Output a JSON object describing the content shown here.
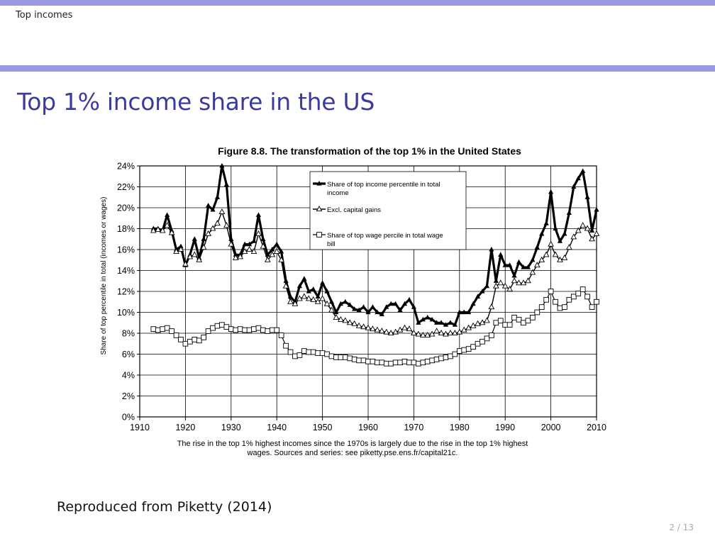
{
  "header": {
    "section": "Top incomes"
  },
  "slide": {
    "title": "Top 1% income share in the US",
    "caption": "Reproduced from Piketty (2014)",
    "page": "2 / 13"
  },
  "colors": {
    "bar": "#9999dd",
    "title": "#3b3b9e"
  },
  "chart_data": {
    "type": "line",
    "title": "Figure 8.8. The transformation of the top 1% in the United States",
    "ylabel": "Share of top percentile in total (incomes or wages)",
    "note_lines": [
      "The rise in the top 1% highest incomes since the 1970s is largely due to the rise in the top 1% highest",
      "wages. Sources and series: see piketty.pse.ens.fr/capital21c."
    ],
    "xlim": [
      1910,
      2010
    ],
    "ylim": [
      0,
      24
    ],
    "x_ticks": [
      1910,
      1920,
      1930,
      1940,
      1950,
      1960,
      1970,
      1980,
      1990,
      2000,
      2010
    ],
    "y_ticks": [
      "0%",
      "2%",
      "4%",
      "6%",
      "8%",
      "10%",
      "12%",
      "14%",
      "16%",
      "18%",
      "20%",
      "22%",
      "24%"
    ],
    "grid": true,
    "legend_position": "top-center",
    "series": [
      {
        "name": "Share of top income percentile in total income",
        "marker": "filled-triangle",
        "points": [
          [
            1913,
            18.0
          ],
          [
            1914,
            18.0
          ],
          [
            1915,
            17.8
          ],
          [
            1916,
            19.3
          ],
          [
            1917,
            17.8
          ],
          [
            1918,
            16.0
          ],
          [
            1919,
            16.3
          ],
          [
            1920,
            14.5
          ],
          [
            1921,
            15.5
          ],
          [
            1922,
            17.0
          ],
          [
            1923,
            15.2
          ],
          [
            1924,
            17.0
          ],
          [
            1925,
            20.2
          ],
          [
            1926,
            19.8
          ],
          [
            1927,
            21.0
          ],
          [
            1928,
            24.0
          ],
          [
            1929,
            22.2
          ],
          [
            1930,
            17.0
          ],
          [
            1931,
            15.5
          ],
          [
            1932,
            15.5
          ],
          [
            1933,
            16.5
          ],
          [
            1934,
            16.5
          ],
          [
            1935,
            16.8
          ],
          [
            1936,
            19.3
          ],
          [
            1937,
            17.0
          ],
          [
            1938,
            15.5
          ],
          [
            1939,
            16.0
          ],
          [
            1940,
            16.5
          ],
          [
            1941,
            15.8
          ],
          [
            1942,
            13.0
          ],
          [
            1943,
            11.5
          ],
          [
            1944,
            11.0
          ],
          [
            1945,
            12.5
          ],
          [
            1946,
            13.2
          ],
          [
            1947,
            12.0
          ],
          [
            1948,
            12.2
          ],
          [
            1949,
            11.5
          ],
          [
            1950,
            12.8
          ],
          [
            1951,
            12.0
          ],
          [
            1952,
            11.0
          ],
          [
            1953,
            10.0
          ],
          [
            1954,
            10.8
          ],
          [
            1955,
            11.0
          ],
          [
            1956,
            10.7
          ],
          [
            1957,
            10.3
          ],
          [
            1958,
            10.2
          ],
          [
            1959,
            10.5
          ],
          [
            1960,
            10.0
          ],
          [
            1961,
            10.5
          ],
          [
            1962,
            10.0
          ],
          [
            1963,
            9.8
          ],
          [
            1964,
            10.5
          ],
          [
            1965,
            10.8
          ],
          [
            1966,
            10.8
          ],
          [
            1967,
            10.2
          ],
          [
            1968,
            10.8
          ],
          [
            1969,
            11.2
          ],
          [
            1970,
            10.5
          ],
          [
            1971,
            9.0
          ],
          [
            1972,
            9.3
          ],
          [
            1973,
            9.5
          ],
          [
            1974,
            9.3
          ],
          [
            1975,
            9.0
          ],
          [
            1976,
            9.0
          ],
          [
            1977,
            8.8
          ],
          [
            1978,
            9.0
          ],
          [
            1979,
            8.8
          ],
          [
            1980,
            10.0
          ],
          [
            1981,
            10.0
          ],
          [
            1982,
            10.0
          ],
          [
            1983,
            10.8
          ],
          [
            1984,
            11.5
          ],
          [
            1985,
            12.0
          ],
          [
            1986,
            12.5
          ],
          [
            1987,
            16.0
          ],
          [
            1988,
            13.0
          ],
          [
            1989,
            15.5
          ],
          [
            1990,
            14.5
          ],
          [
            1991,
            14.5
          ],
          [
            1992,
            13.5
          ],
          [
            1993,
            14.8
          ],
          [
            1994,
            14.3
          ],
          [
            1995,
            14.3
          ],
          [
            1996,
            15.0
          ],
          [
            1997,
            16.2
          ],
          [
            1998,
            17.5
          ],
          [
            1999,
            18.5
          ],
          [
            2000,
            21.5
          ],
          [
            2001,
            18.0
          ],
          [
            2002,
            16.8
          ],
          [
            2003,
            17.5
          ],
          [
            2004,
            19.5
          ],
          [
            2005,
            22.0
          ],
          [
            2006,
            22.8
          ],
          [
            2007,
            23.5
          ],
          [
            2008,
            21.0
          ],
          [
            2009,
            17.8
          ],
          [
            2010,
            19.8
          ]
        ]
      },
      {
        "name": "Excl. capital gains",
        "marker": "open-triangle",
        "points": [
          [
            1913,
            17.8
          ],
          [
            1914,
            17.9
          ],
          [
            1915,
            17.8
          ],
          [
            1916,
            18.3
          ],
          [
            1917,
            17.6
          ],
          [
            1918,
            15.8
          ],
          [
            1919,
            16.0
          ],
          [
            1920,
            14.6
          ],
          [
            1921,
            15.3
          ],
          [
            1922,
            15.5
          ],
          [
            1923,
            15.0
          ],
          [
            1924,
            16.2
          ],
          [
            1925,
            17.5
          ],
          [
            1926,
            18.0
          ],
          [
            1927,
            18.5
          ],
          [
            1928,
            19.6
          ],
          [
            1929,
            18.3
          ],
          [
            1930,
            16.5
          ],
          [
            1931,
            15.2
          ],
          [
            1932,
            15.3
          ],
          [
            1933,
            15.8
          ],
          [
            1934,
            16.0
          ],
          [
            1935,
            15.8
          ],
          [
            1936,
            17.5
          ],
          [
            1937,
            16.3
          ],
          [
            1938,
            15.0
          ],
          [
            1939,
            15.5
          ],
          [
            1940,
            15.8
          ],
          [
            1941,
            15.0
          ],
          [
            1942,
            12.5
          ],
          [
            1943,
            11.0
          ],
          [
            1944,
            10.8
          ],
          [
            1945,
            11.3
          ],
          [
            1946,
            11.5
          ],
          [
            1947,
            11.3
          ],
          [
            1948,
            11.2
          ],
          [
            1949,
            11.0
          ],
          [
            1950,
            11.3
          ],
          [
            1951,
            10.8
          ],
          [
            1952,
            10.2
          ],
          [
            1953,
            9.5
          ],
          [
            1954,
            9.3
          ],
          [
            1955,
            9.2
          ],
          [
            1956,
            9.0
          ],
          [
            1957,
            8.9
          ],
          [
            1958,
            8.7
          ],
          [
            1959,
            8.6
          ],
          [
            1960,
            8.5
          ],
          [
            1961,
            8.4
          ],
          [
            1962,
            8.3
          ],
          [
            1963,
            8.2
          ],
          [
            1964,
            8.1
          ],
          [
            1965,
            8.0
          ],
          [
            1966,
            8.1
          ],
          [
            1967,
            8.3
          ],
          [
            1968,
            8.5
          ],
          [
            1969,
            8.4
          ],
          [
            1970,
            8.0
          ],
          [
            1971,
            7.9
          ],
          [
            1972,
            7.8
          ],
          [
            1973,
            7.8
          ],
          [
            1974,
            7.9
          ],
          [
            1975,
            8.2
          ],
          [
            1976,
            8.0
          ],
          [
            1977,
            7.9
          ],
          [
            1978,
            8.0
          ],
          [
            1979,
            8.0
          ],
          [
            1980,
            8.1
          ],
          [
            1981,
            8.3
          ],
          [
            1982,
            8.5
          ],
          [
            1983,
            8.7
          ],
          [
            1984,
            8.9
          ],
          [
            1985,
            9.0
          ],
          [
            1986,
            9.2
          ],
          [
            1987,
            10.5
          ],
          [
            1988,
            12.5
          ],
          [
            1989,
            12.8
          ],
          [
            1990,
            12.5
          ],
          [
            1991,
            12.2
          ],
          [
            1992,
            13.0
          ],
          [
            1993,
            12.8
          ],
          [
            1994,
            12.8
          ],
          [
            1995,
            13.0
          ],
          [
            1996,
            13.8
          ],
          [
            1997,
            14.5
          ],
          [
            1998,
            15.0
          ],
          [
            1999,
            15.5
          ],
          [
            2000,
            16.5
          ],
          [
            2001,
            15.5
          ],
          [
            2002,
            15.0
          ],
          [
            2003,
            15.2
          ],
          [
            2004,
            16.2
          ],
          [
            2005,
            17.2
          ],
          [
            2006,
            17.8
          ],
          [
            2007,
            18.3
          ],
          [
            2008,
            18.0
          ],
          [
            2009,
            17.0
          ],
          [
            2010,
            17.5
          ]
        ]
      },
      {
        "name": "Share of top wage percile in total wage bill",
        "marker": "open-square",
        "points": [
          [
            1913,
            8.4
          ],
          [
            1914,
            8.3
          ],
          [
            1915,
            8.4
          ],
          [
            1916,
            8.5
          ],
          [
            1917,
            8.2
          ],
          [
            1918,
            7.8
          ],
          [
            1919,
            7.4
          ],
          [
            1920,
            7.0
          ],
          [
            1921,
            7.2
          ],
          [
            1922,
            7.4
          ],
          [
            1923,
            7.3
          ],
          [
            1924,
            7.6
          ],
          [
            1925,
            8.2
          ],
          [
            1926,
            8.5
          ],
          [
            1927,
            8.7
          ],
          [
            1928,
            8.8
          ],
          [
            1929,
            8.6
          ],
          [
            1930,
            8.4
          ],
          [
            1931,
            8.3
          ],
          [
            1932,
            8.4
          ],
          [
            1933,
            8.3
          ],
          [
            1934,
            8.3
          ],
          [
            1935,
            8.4
          ],
          [
            1936,
            8.5
          ],
          [
            1937,
            8.3
          ],
          [
            1938,
            8.2
          ],
          [
            1939,
            8.3
          ],
          [
            1940,
            8.3
          ],
          [
            1941,
            7.8
          ],
          [
            1942,
            6.8
          ],
          [
            1943,
            6.2
          ],
          [
            1944,
            5.8
          ],
          [
            1945,
            5.9
          ],
          [
            1946,
            6.3
          ],
          [
            1947,
            6.2
          ],
          [
            1948,
            6.2
          ],
          [
            1949,
            6.1
          ],
          [
            1950,
            6.1
          ],
          [
            1951,
            6.0
          ],
          [
            1952,
            5.8
          ],
          [
            1953,
            5.7
          ],
          [
            1954,
            5.7
          ],
          [
            1955,
            5.7
          ],
          [
            1956,
            5.6
          ],
          [
            1957,
            5.5
          ],
          [
            1958,
            5.4
          ],
          [
            1959,
            5.4
          ],
          [
            1960,
            5.3
          ],
          [
            1961,
            5.3
          ],
          [
            1962,
            5.2
          ],
          [
            1963,
            5.2
          ],
          [
            1964,
            5.1
          ],
          [
            1965,
            5.1
          ],
          [
            1966,
            5.2
          ],
          [
            1967,
            5.2
          ],
          [
            1968,
            5.3
          ],
          [
            1969,
            5.2
          ],
          [
            1970,
            5.2
          ],
          [
            1971,
            5.1
          ],
          [
            1972,
            5.2
          ],
          [
            1973,
            5.3
          ],
          [
            1974,
            5.4
          ],
          [
            1975,
            5.5
          ],
          [
            1976,
            5.6
          ],
          [
            1977,
            5.7
          ],
          [
            1978,
            5.8
          ],
          [
            1979,
            6.0
          ],
          [
            1980,
            6.3
          ],
          [
            1981,
            6.4
          ],
          [
            1982,
            6.5
          ],
          [
            1983,
            6.7
          ],
          [
            1984,
            7.0
          ],
          [
            1985,
            7.2
          ],
          [
            1986,
            7.5
          ],
          [
            1987,
            7.8
          ],
          [
            1988,
            9.0
          ],
          [
            1989,
            9.2
          ],
          [
            1990,
            8.8
          ],
          [
            1991,
            8.8
          ],
          [
            1992,
            9.5
          ],
          [
            1993,
            9.3
          ],
          [
            1994,
            9.0
          ],
          [
            1995,
            9.2
          ],
          [
            1996,
            9.5
          ],
          [
            1997,
            10.0
          ],
          [
            1998,
            10.5
          ],
          [
            1999,
            11.2
          ],
          [
            2000,
            12.0
          ],
          [
            2001,
            11.0
          ],
          [
            2002,
            10.4
          ],
          [
            2003,
            10.5
          ],
          [
            2004,
            11.2
          ],
          [
            2005,
            11.5
          ],
          [
            2006,
            11.8
          ],
          [
            2007,
            12.2
          ],
          [
            2008,
            11.5
          ],
          [
            2009,
            10.5
          ],
          [
            2010,
            11.0
          ]
        ]
      }
    ]
  }
}
